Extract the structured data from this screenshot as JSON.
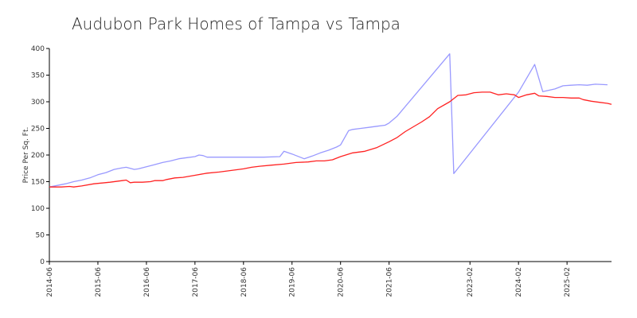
{
  "chart_data": {
    "type": "line",
    "title": "Audubon Park Homes of Tampa vs Tampa",
    "xlabel": "",
    "ylabel": "Price Per Sq. Ft.",
    "ylim": [
      0,
      400
    ],
    "yticks": [
      0,
      50,
      100,
      150,
      200,
      250,
      300,
      350,
      400
    ],
    "xlim": [
      "2014-06",
      "2026-01"
    ],
    "xticks": [
      "2014-06",
      "2015-06",
      "2016-06",
      "2017-06",
      "2018-06",
      "2019-06",
      "2020-06",
      "2021-06",
      "2023-02",
      "2024-02",
      "2025-02"
    ],
    "grid": false,
    "legend": "none",
    "series": [
      {
        "name": "",
        "color": "#9999ff",
        "points": [
          [
            "2014-06",
            140
          ],
          [
            "2014-08",
            143
          ],
          [
            "2014-10",
            146
          ],
          [
            "2014-12",
            150
          ],
          [
            "2015-02",
            153
          ],
          [
            "2015-04",
            157
          ],
          [
            "2015-06",
            163
          ],
          [
            "2015-08",
            167
          ],
          [
            "2015-10",
            173
          ],
          [
            "2015-12",
            176
          ],
          [
            "2016-01",
            177
          ],
          [
            "2016-02",
            175
          ],
          [
            "2016-03",
            173
          ],
          [
            "2016-04",
            174
          ],
          [
            "2016-06",
            178
          ],
          [
            "2016-08",
            182
          ],
          [
            "2016-10",
            186
          ],
          [
            "2016-12",
            189
          ],
          [
            "2017-02",
            193
          ],
          [
            "2017-04",
            195
          ],
          [
            "2017-06",
            197
          ],
          [
            "2017-07",
            200
          ],
          [
            "2017-08",
            199
          ],
          [
            "2017-09",
            196
          ],
          [
            "2018-01",
            196
          ],
          [
            "2018-06",
            196
          ],
          [
            "2018-11",
            196
          ],
          [
            "2019-03",
            197
          ],
          [
            "2019-04",
            207
          ],
          [
            "2019-06",
            202
          ],
          [
            "2019-08",
            196
          ],
          [
            "2019-09",
            193
          ],
          [
            "2019-11",
            198
          ],
          [
            "2020-01",
            204
          ],
          [
            "2020-03",
            209
          ],
          [
            "2020-05",
            215
          ],
          [
            "2020-06",
            219
          ],
          [
            "2020-08",
            246
          ],
          [
            "2020-09",
            248
          ],
          [
            "2020-11",
            250
          ],
          [
            "2021-01",
            252
          ],
          [
            "2021-03",
            254
          ],
          [
            "2021-05",
            256
          ],
          [
            "2021-06",
            260
          ],
          [
            "2021-08",
            273
          ],
          [
            "2022-09",
            390
          ],
          [
            "2022-10",
            165
          ],
          [
            "2024-02",
            318
          ],
          [
            "2024-06",
            370
          ],
          [
            "2024-08",
            319
          ],
          [
            "2024-11",
            324
          ],
          [
            "2025-01",
            330
          ],
          [
            "2025-03",
            331
          ],
          [
            "2025-05",
            332
          ],
          [
            "2025-07",
            331
          ],
          [
            "2025-09",
            333
          ],
          [
            "2025-12",
            332
          ]
        ]
      },
      {
        "name": "",
        "color": "#ff2222",
        "points": [
          [
            "2014-06",
            140
          ],
          [
            "2014-09",
            140
          ],
          [
            "2014-11",
            141
          ],
          [
            "2014-12",
            140
          ],
          [
            "2015-02",
            142
          ],
          [
            "2015-05",
            146
          ],
          [
            "2015-09",
            149
          ],
          [
            "2015-12",
            152
          ],
          [
            "2016-01",
            153
          ],
          [
            "2016-02",
            148
          ],
          [
            "2016-03",
            149
          ],
          [
            "2016-05",
            149
          ],
          [
            "2016-07",
            150
          ],
          [
            "2016-08",
            152
          ],
          [
            "2016-10",
            152
          ],
          [
            "2016-11",
            154
          ],
          [
            "2017-01",
            157
          ],
          [
            "2017-03",
            158
          ],
          [
            "2017-06",
            162
          ],
          [
            "2017-09",
            166
          ],
          [
            "2017-12",
            168
          ],
          [
            "2018-03",
            171
          ],
          [
            "2018-06",
            174
          ],
          [
            "2018-08",
            177
          ],
          [
            "2018-10",
            179
          ],
          [
            "2019-01",
            181
          ],
          [
            "2019-04",
            183
          ],
          [
            "2019-07",
            186
          ],
          [
            "2019-10",
            187
          ],
          [
            "2019-12",
            189
          ],
          [
            "2020-02",
            189
          ],
          [
            "2020-04",
            191
          ],
          [
            "2020-06",
            197
          ],
          [
            "2020-09",
            204
          ],
          [
            "2020-12",
            207
          ],
          [
            "2021-03",
            214
          ],
          [
            "2021-06",
            225
          ],
          [
            "2021-08",
            233
          ],
          [
            "2021-10",
            244
          ],
          [
            "2021-12",
            253
          ],
          [
            "2022-02",
            262
          ],
          [
            "2022-04",
            272
          ],
          [
            "2022-06",
            287
          ],
          [
            "2022-09",
            300
          ],
          [
            "2022-11",
            312
          ],
          [
            "2023-01",
            313
          ],
          [
            "2023-03",
            317
          ],
          [
            "2023-05",
            318
          ],
          [
            "2023-07",
            318
          ],
          [
            "2023-09",
            313
          ],
          [
            "2023-11",
            315
          ],
          [
            "2024-01",
            313
          ],
          [
            "2024-02",
            308
          ],
          [
            "2024-04",
            313
          ],
          [
            "2024-06",
            316
          ],
          [
            "2024-07",
            311
          ],
          [
            "2024-09",
            310
          ],
          [
            "2024-11",
            308
          ],
          [
            "2025-01",
            308
          ],
          [
            "2025-03",
            307
          ],
          [
            "2025-05",
            307
          ],
          [
            "2025-06",
            304
          ],
          [
            "2025-08",
            301
          ],
          [
            "2025-10",
            299
          ],
          [
            "2025-12",
            297
          ],
          [
            "2026-01",
            295
          ]
        ]
      }
    ]
  }
}
